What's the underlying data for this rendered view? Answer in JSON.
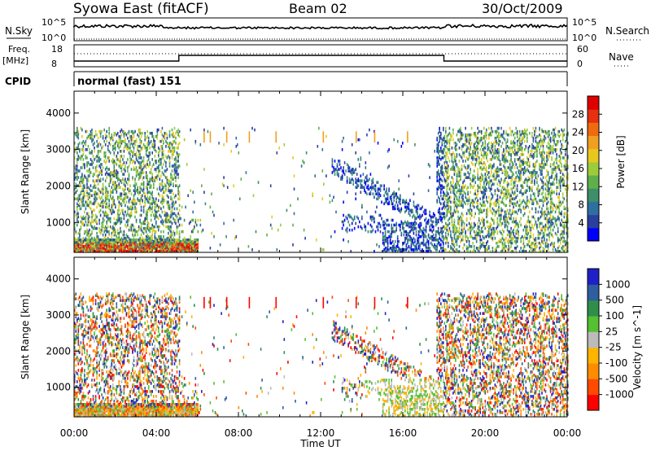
{
  "header": {
    "station": "Syowa East (fitACF)",
    "beam": "Beam 02",
    "date": "30/Oct/2009"
  },
  "panels": {
    "nsky_label": "N.Sky",
    "nsearch_label": "N.Search",
    "nsky_ticks": [
      "10^5",
      "10^0"
    ],
    "nsearch_ticks": [
      "10^5",
      "10^0"
    ],
    "freq_label": "Freq.",
    "freq_unit": "[MHz]",
    "freq_ticks": [
      "18",
      "8"
    ],
    "nave_label": "Nave",
    "nave_ticks": [
      "60",
      "0"
    ],
    "cpid_label": "CPID",
    "cpid_text": "normal (fast) 151"
  },
  "colors": {
    "power_scale": [
      "#0000ff",
      "#2b3f9f",
      "#2f6fa0",
      "#3c8f6a",
      "#5fb04a",
      "#9ccc3c",
      "#e8c81e",
      "#f0a020",
      "#f06a10",
      "#e63010",
      "#e00000"
    ],
    "velocity_scale": [
      "#ff0000",
      "#ff4a00",
      "#ff8c00",
      "#ffb400",
      "#bbbbbb",
      "#55c030",
      "#2e8f4a",
      "#2e5ea0",
      "#2020c8"
    ]
  },
  "chart_data": [
    {
      "type": "heatmap",
      "title": "Power",
      "xlabel": "",
      "ylabel": "Slant Range [km]",
      "y_ticks": [
        "1000",
        "2000",
        "3000",
        "4000"
      ],
      "ylim": [
        180,
        4600
      ],
      "colorbar_label": "Power [dB]",
      "colorbar_ticks": [
        "4",
        "8",
        "12",
        "16",
        "20",
        "24",
        "28"
      ],
      "clim": [
        0,
        30
      ]
    },
    {
      "type": "heatmap",
      "title": "Velocity",
      "xlabel": "Time UT",
      "ylabel": "Slant Range [km]",
      "y_ticks": [
        "1000",
        "2000",
        "3000",
        "4000"
      ],
      "ylim": [
        180,
        4600
      ],
      "colorbar_label": "Velocity [m s^-1]",
      "colorbar_ticks": [
        "1000",
        "500",
        "100",
        "25",
        "-25",
        "-100",
        "-500",
        "-1000"
      ],
      "x_ticks": [
        "00:00",
        "04:00",
        "08:00",
        "12:00",
        "16:00",
        "20:00",
        "00:00"
      ],
      "xlim": [
        0,
        24
      ]
    }
  ]
}
